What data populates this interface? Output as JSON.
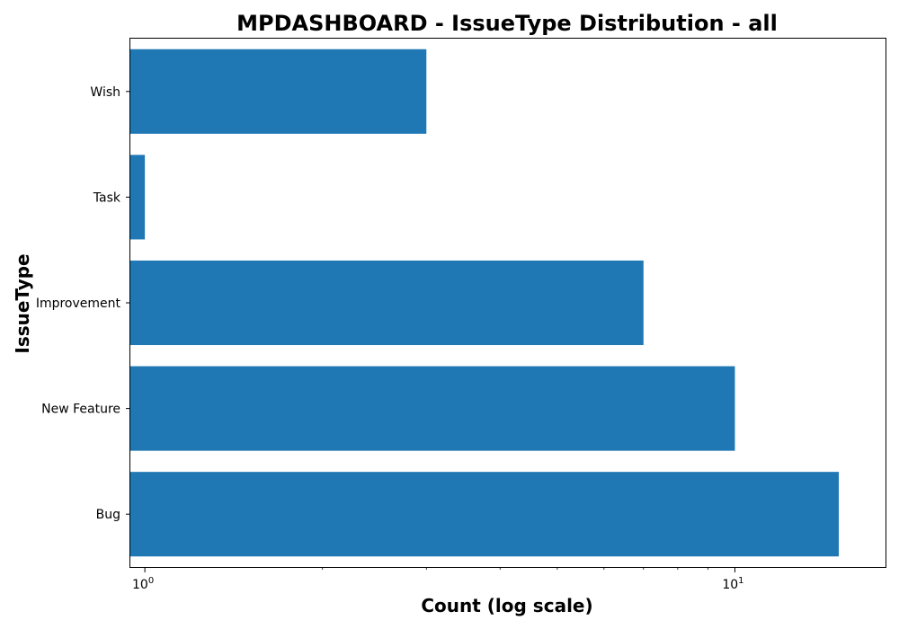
{
  "chart_data": {
    "type": "bar",
    "orientation": "horizontal",
    "title": "MPDASHBOARD - IssueType Distribution - all",
    "xlabel": "Count (log scale)",
    "ylabel": "IssueType",
    "x_scale": "log",
    "xlim": [
      0.945,
      18
    ],
    "x_ticks": [
      {
        "value": 1,
        "base": "10",
        "exp": "0"
      },
      {
        "value": 10,
        "base": "10",
        "exp": "1"
      }
    ],
    "categories": [
      "Bug",
      "New Feature",
      "Improvement",
      "Task",
      "Wish"
    ],
    "values": [
      15,
      10,
      7,
      1,
      3
    ],
    "bar_color": "#1f77b4",
    "grid": false,
    "legend": "none"
  }
}
